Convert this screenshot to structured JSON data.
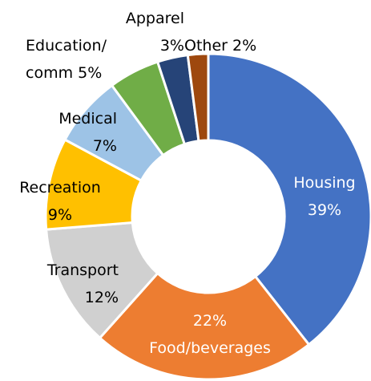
{
  "chart_data": {
    "type": "donut",
    "categories": [
      "Housing",
      "Food/beverages",
      "Transport",
      "Recreation",
      "Medical",
      "Education/ comm",
      "Apparel",
      "Other"
    ],
    "values": [
      39,
      22,
      12,
      9,
      7,
      5,
      3,
      2
    ],
    "value_labels": [
      "39%",
      "22%",
      "12%",
      "9%",
      "7%",
      "5%",
      "3%",
      "2%"
    ],
    "colors": [
      "#4472c4",
      "#ed7d31",
      "#d0d0d0",
      "#ffc000",
      "#9dc3e6",
      "#70ad47",
      "#264478",
      "#9e480e"
    ]
  }
}
